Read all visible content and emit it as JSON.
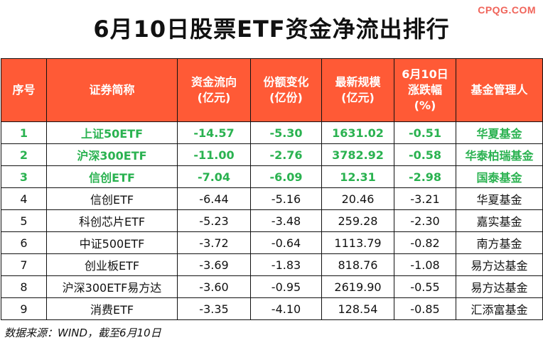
{
  "watermark": "CPQG.COM",
  "title": "6月10日股票ETF资金净流出排行",
  "headers": [
    {
      "l1": "序号",
      "l2": ""
    },
    {
      "l1": "证券简称",
      "l2": ""
    },
    {
      "l1": "资金流向",
      "l2": "(亿元)"
    },
    {
      "l1": "份额变化",
      "l2": "(亿份)"
    },
    {
      "l1": "最新规模",
      "l2": "(亿元)"
    },
    {
      "l1": "6月10日",
      "l2": "涨跌幅",
      "l3": "(%)"
    },
    {
      "l1": "基金管理人",
      "l2": ""
    }
  ],
  "rows": [
    {
      "no": "1",
      "name": "上证50ETF",
      "flow": "-14.57",
      "share": "-5.30",
      "scale": "1631.02",
      "chg": "-0.51",
      "mgr": "华夏基金",
      "highlight": true
    },
    {
      "no": "2",
      "name": "沪深300ETF",
      "flow": "-11.00",
      "share": "-2.76",
      "scale": "3782.92",
      "chg": "-0.58",
      "mgr": "华泰柏瑞基金",
      "highlight": true
    },
    {
      "no": "3",
      "name": "信创ETF",
      "flow": "-7.04",
      "share": "-6.09",
      "scale": "12.31",
      "chg": "-2.98",
      "mgr": "国泰基金",
      "highlight": true
    },
    {
      "no": "4",
      "name": "信创ETF",
      "flow": "-6.44",
      "share": "-5.16",
      "scale": "20.46",
      "chg": "-3.21",
      "mgr": "华夏基金",
      "highlight": false
    },
    {
      "no": "5",
      "name": "科创芯片ETF",
      "flow": "-5.23",
      "share": "-3.48",
      "scale": "259.28",
      "chg": "-2.30",
      "mgr": "嘉实基金",
      "highlight": false
    },
    {
      "no": "6",
      "name": "中证500ETF",
      "flow": "-3.72",
      "share": "-0.64",
      "scale": "1113.79",
      "chg": "-0.82",
      "mgr": "南方基金",
      "highlight": false
    },
    {
      "no": "7",
      "name": "创业板ETF",
      "flow": "-3.69",
      "share": "-1.83",
      "scale": "818.76",
      "chg": "-1.08",
      "mgr": "易方达基金",
      "highlight": false
    },
    {
      "no": "8",
      "name": "沪深300ETF易方达",
      "flow": "-3.60",
      "share": "-0.95",
      "scale": "2619.90",
      "chg": "-0.55",
      "mgr": "易方达基金",
      "highlight": false
    },
    {
      "no": "9",
      "name": "消费ETF",
      "flow": "-3.35",
      "share": "-4.10",
      "scale": "128.54",
      "chg": "-0.85",
      "mgr": "汇添富基金",
      "highlight": false
    }
  ],
  "footer": "数据来源：WIND，截至6月10日",
  "colors": {
    "header_bg": "#ff5a36",
    "highlight_text": "#2ab250",
    "watermark": "#f0645a"
  }
}
